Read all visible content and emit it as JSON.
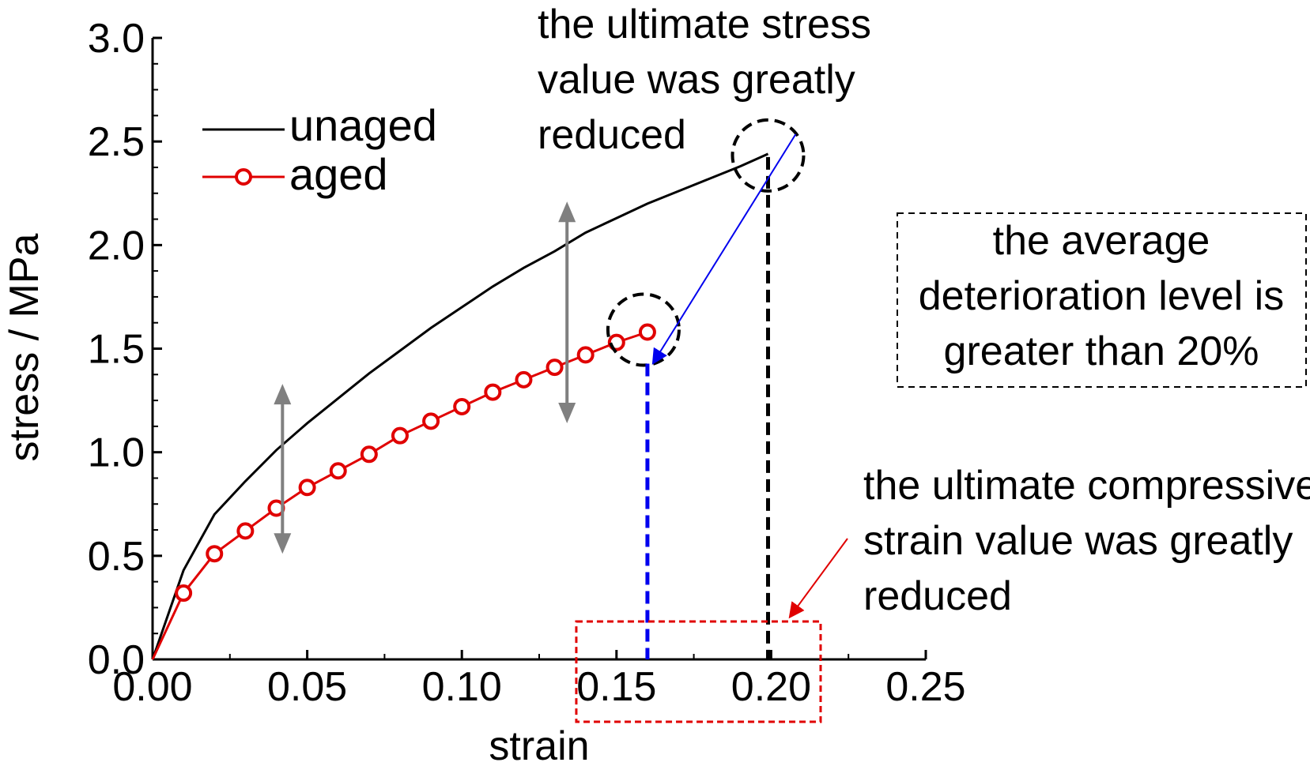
{
  "chart_data": {
    "type": "line",
    "xlabel": "strain",
    "ylabel": "stress / MPa",
    "xlim": [
      0,
      0.25
    ],
    "ylim": [
      0,
      3.0
    ],
    "xticks": [
      "0.00",
      "0.05",
      "0.10",
      "0.15",
      "0.20",
      "0.25"
    ],
    "yticks": [
      "0.0",
      "0.5",
      "1.0",
      "1.5",
      "2.0",
      "2.5",
      "3.0"
    ],
    "grid": false,
    "legend_position": "top-left",
    "series": [
      {
        "name": "unaged",
        "color": "#000000",
        "marker": "none",
        "x": [
          0,
          0.01,
          0.02,
          0.03,
          0.04,
          0.05,
          0.06,
          0.07,
          0.08,
          0.09,
          0.1,
          0.11,
          0.12,
          0.13,
          0.14,
          0.15,
          0.16,
          0.17,
          0.18,
          0.19,
          0.199
        ],
        "y": [
          0,
          0.43,
          0.7,
          0.86,
          1.01,
          1.14,
          1.26,
          1.38,
          1.49,
          1.6,
          1.7,
          1.8,
          1.89,
          1.97,
          2.06,
          2.13,
          2.2,
          2.26,
          2.32,
          2.38,
          2.44
        ]
      },
      {
        "name": "aged",
        "color": "#e00000",
        "marker": "open-circle",
        "x": [
          0,
          0.01,
          0.02,
          0.03,
          0.04,
          0.05,
          0.06,
          0.07,
          0.08,
          0.09,
          0.1,
          0.11,
          0.12,
          0.13,
          0.14,
          0.15,
          0.16
        ],
        "y": [
          0,
          0.32,
          0.51,
          0.62,
          0.73,
          0.83,
          0.91,
          0.99,
          1.08,
          1.15,
          1.22,
          1.29,
          1.35,
          1.41,
          1.47,
          1.53,
          1.58
        ]
      }
    ],
    "annotations": {
      "stress_note": [
        "the ultimate stress",
        "value was greatly",
        "reduced"
      ],
      "deterioration_note": [
        "the average",
        "deterioration level is",
        "greater than 20%"
      ],
      "strain_note": [
        "the ultimate compressive",
        "strain value was greatly",
        "reduced"
      ]
    },
    "markers": {
      "unaged_peak": {
        "x": 0.199,
        "y": 2.44
      },
      "aged_peak": {
        "x": 0.16,
        "y": 1.58
      },
      "gap_arrows": [
        {
          "x": 0.042,
          "y_top": 1.33,
          "y_bottom": 0.51
        },
        {
          "x": 0.134,
          "y_top": 2.21,
          "y_bottom": 1.14
        }
      ]
    },
    "colors": {
      "gap_arrow": "#808080",
      "peak_to_peak_arrow": "#0000ee",
      "aged_strain_dash": "#0000ee",
      "unaged_strain_dash": "#000000",
      "strain_box": "#e00000",
      "strain_note_arrow": "#e00000"
    }
  }
}
